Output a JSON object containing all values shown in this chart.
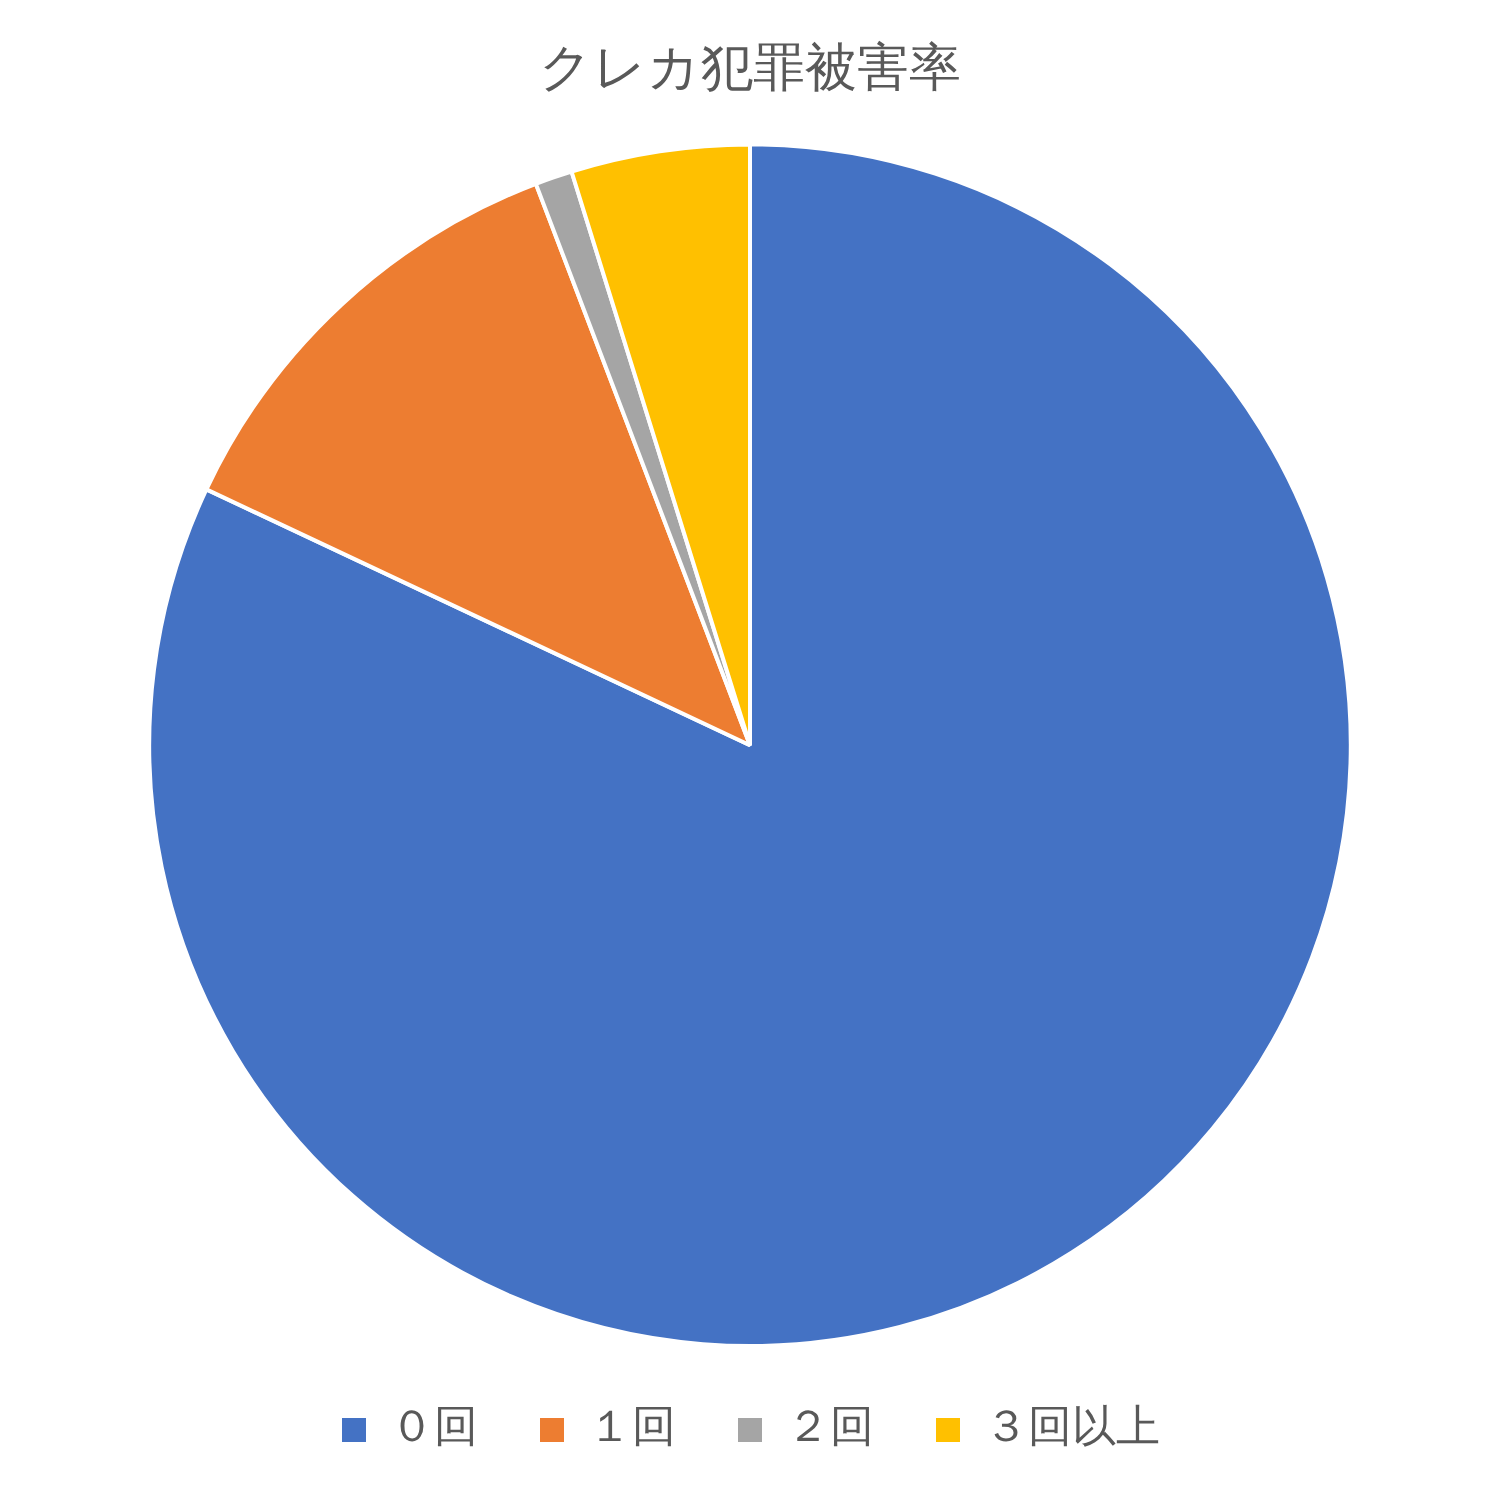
{
  "chart_data": {
    "type": "pie",
    "title": "クレカ犯罪被害率",
    "categories": [
      "０回",
      "１回",
      "２回",
      "３回以上"
    ],
    "values": [
      82,
      12.2,
      1,
      4.8
    ],
    "colors": [
      "#4472c4",
      "#ed7d31",
      "#a5a5a5",
      "#ffc000"
    ],
    "legend": "bottom"
  }
}
